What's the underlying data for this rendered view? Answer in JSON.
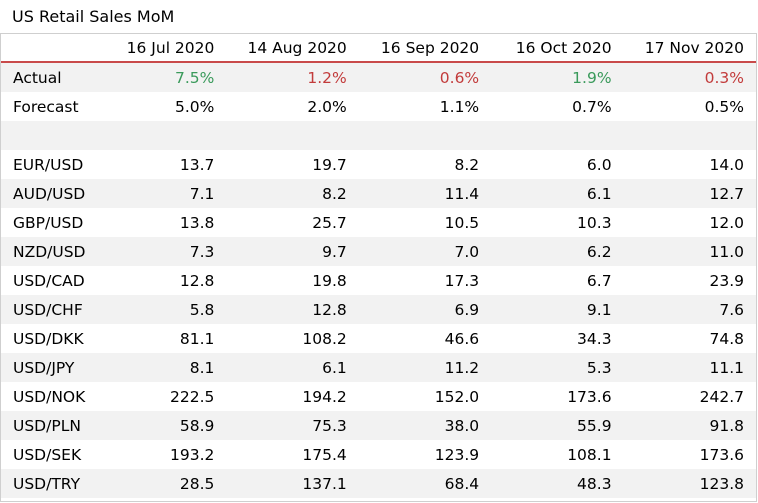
{
  "title": "US Retail Sales MoM",
  "colors": {
    "up": "#3a9a5b",
    "down": "#c23b3b",
    "header_rule": "#c94a4a",
    "stripe": "#f2f2f2"
  },
  "chart_data": {
    "type": "table",
    "title": "US Retail Sales MoM",
    "columns": [
      "16 Jul 2020",
      "14 Aug 2020",
      "16 Sep 2020",
      "16 Oct 2020",
      "17 Nov 2020"
    ],
    "actual": {
      "label": "Actual",
      "values": [
        "7.5%",
        "1.2%",
        "0.6%",
        "1.9%",
        "0.3%"
      ],
      "direction": [
        "up",
        "down",
        "down",
        "up",
        "down"
      ]
    },
    "forecast": {
      "label": "Forecast",
      "values": [
        "5.0%",
        "2.0%",
        "1.1%",
        "0.7%",
        "0.5%"
      ]
    },
    "pairs": [
      {
        "label": "EUR/USD",
        "values": [
          "13.7",
          "19.7",
          "8.2",
          "6.0",
          "14.0"
        ]
      },
      {
        "label": "AUD/USD",
        "values": [
          "7.1",
          "8.2",
          "11.4",
          "6.1",
          "12.7"
        ]
      },
      {
        "label": "GBP/USD",
        "values": [
          "13.8",
          "25.7",
          "10.5",
          "10.3",
          "12.0"
        ]
      },
      {
        "label": "NZD/USD",
        "values": [
          "7.3",
          "9.7",
          "7.0",
          "6.2",
          "11.0"
        ]
      },
      {
        "label": "USD/CAD",
        "values": [
          "12.8",
          "19.8",
          "17.3",
          "6.7",
          "23.9"
        ]
      },
      {
        "label": "USD/CHF",
        "values": [
          "5.8",
          "12.8",
          "6.9",
          "9.1",
          "7.6"
        ]
      },
      {
        "label": "USD/DKK",
        "values": [
          "81.1",
          "108.2",
          "46.6",
          "34.3",
          "74.8"
        ]
      },
      {
        "label": "USD/JPY",
        "values": [
          "8.1",
          "6.1",
          "11.2",
          "5.3",
          "11.1"
        ]
      },
      {
        "label": "USD/NOK",
        "values": [
          "222.5",
          "194.2",
          "152.0",
          "173.6",
          "242.7"
        ]
      },
      {
        "label": "USD/PLN",
        "values": [
          "58.9",
          "75.3",
          "38.0",
          "55.9",
          "91.8"
        ]
      },
      {
        "label": "USD/SEK",
        "values": [
          "193.2",
          "175.4",
          "123.9",
          "108.1",
          "173.6"
        ]
      },
      {
        "label": "USD/TRY",
        "values": [
          "28.5",
          "137.1",
          "68.4",
          "48.3",
          "123.8"
        ]
      }
    ]
  }
}
